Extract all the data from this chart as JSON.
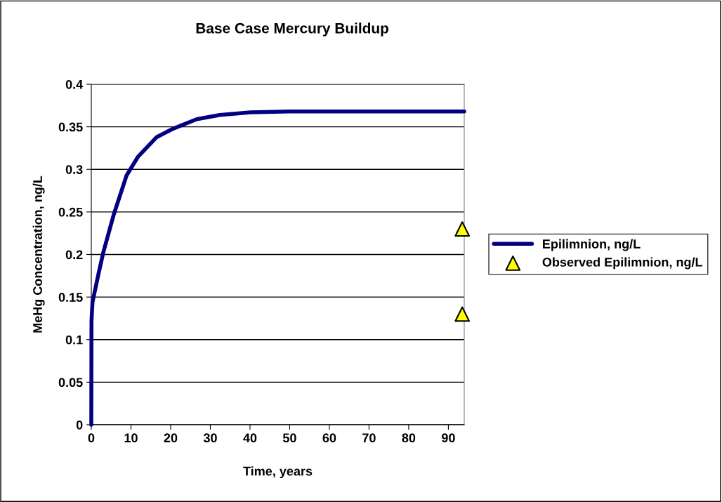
{
  "chart_data": {
    "type": "line",
    "title": "Base Case Mercury Buildup",
    "xlabel": "Time, years",
    "ylabel": "MeHg Concentration, ng/L",
    "xlim": [
      0,
      94
    ],
    "xticks": [
      0,
      10,
      20,
      30,
      40,
      50,
      60,
      70,
      80,
      90
    ],
    "ylim": [
      0,
      0.4
    ],
    "yticks": [
      0,
      0.05,
      0.1,
      0.15,
      0.2,
      0.25,
      0.3,
      0.35,
      0.4
    ],
    "grid": "y",
    "legend": "right",
    "series": [
      {
        "name": "Epilimnion, ng/L",
        "color": "#000080",
        "marker": "none",
        "line_style": "solid",
        "x": [
          0,
          0.05,
          0.3,
          1.8,
          3,
          5.6,
          8.9,
          11.8,
          16.5,
          20.7,
          26.6,
          32.4,
          40.1,
          50,
          94
        ],
        "values": [
          0,
          0.122,
          0.144,
          0.177,
          0.202,
          0.246,
          0.293,
          0.315,
          0.338,
          0.348,
          0.359,
          0.364,
          0.367,
          0.368,
          0.368
        ]
      },
      {
        "name": "Observed Epilimnion, ng/L",
        "type": "scatter",
        "color": "#ffff00",
        "marker": "triangle",
        "x": [
          93.5,
          93.5
        ],
        "values": [
          0.23,
          0.13
        ]
      }
    ]
  }
}
